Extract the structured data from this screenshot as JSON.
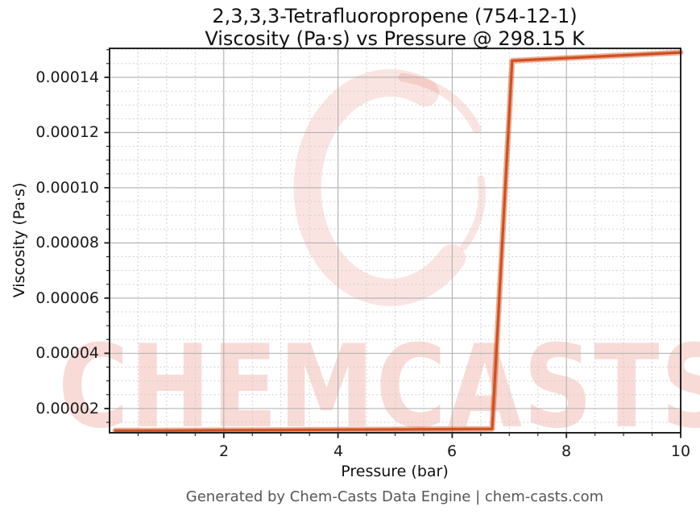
{
  "chart_data": {
    "type": "line",
    "title_lines": [
      "2,3,3,3-Tetrafluoropropene (754-12-1)",
      "Viscosity (Pa·s) vs Pressure @ 298.15 K"
    ],
    "compound": "2,3,3,3-Tetrafluoropropene",
    "cas_number": "754-12-1",
    "temperature": "298.15 K",
    "xlabel": "Pressure (bar)",
    "ylabel": "Viscosity (Pa·s)",
    "xlim": [
      0,
      10
    ],
    "ylim": [
      1.12e-05,
      0.0001505
    ],
    "xticks": [
      2,
      4,
      6,
      8,
      10
    ],
    "xtick_labels": [
      "2",
      "4",
      "6",
      "8",
      "10"
    ],
    "yticks": [
      2e-05,
      4e-05,
      6e-05,
      8e-05,
      0.0001,
      0.00012,
      0.00014
    ],
    "ytick_labels": [
      "0.00002",
      "0.00004",
      "0.00006",
      "0.00008",
      "0.00010",
      "0.00012",
      "0.00014"
    ],
    "x_minor_step": 0.5,
    "y_minor_step": 5e-06,
    "grid": {
      "major": true,
      "minor": true
    },
    "legend": false,
    "series": [
      {
        "name": "Viscosity vs Pressure",
        "color": "#d0501e",
        "x": [
          0.1,
          1.0,
          2.0,
          3.0,
          4.0,
          5.0,
          6.0,
          6.7,
          7.05,
          8.0,
          9.0,
          10.0
        ],
        "y": [
          1.2e-05,
          1.2e-05,
          1.21e-05,
          1.22e-05,
          1.23e-05,
          1.24e-05,
          1.25e-05,
          1.26e-05,
          0.000146,
          0.000147,
          0.000148,
          0.000149
        ]
      }
    ]
  },
  "watermark": {
    "text": "CHEMCASTS",
    "logo": "brush-ring-c-logo",
    "text_color": "rgba(224,90,70,0.22)",
    "ring_color": "rgba(224,90,70,0.16)"
  },
  "footer": {
    "text": "Generated by Chem-Casts Data Engine | chem-casts.com"
  },
  "colors": {
    "line": "#d0501e",
    "grid_major": "#b0b0b0",
    "grid_minor": "#cccccc",
    "spine": "#1a1a1a",
    "title_text": "#111111",
    "footer_text": "#555555"
  }
}
